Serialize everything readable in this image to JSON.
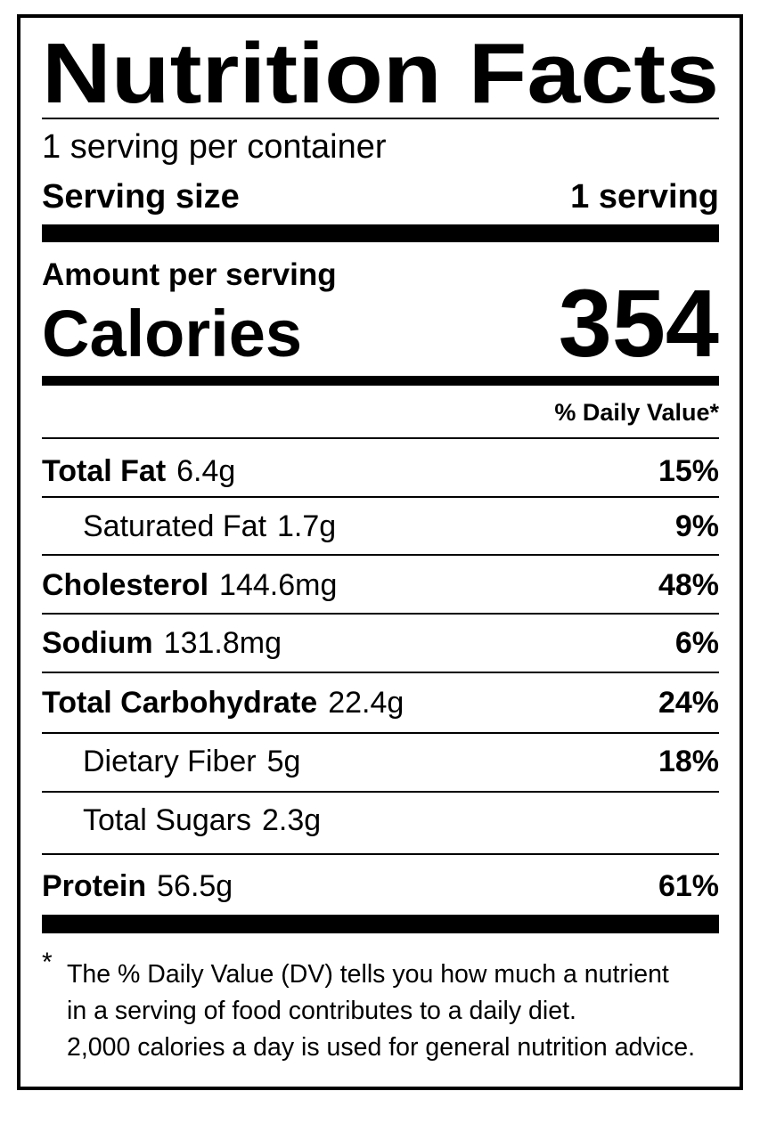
{
  "header": {
    "title": "Nutrition Facts",
    "servings_per_container": "1 serving per container",
    "serving_size_label": "Serving size",
    "serving_size_value": "1 serving"
  },
  "calories": {
    "amount_label": "Amount per serving",
    "label": "Calories",
    "value": "354"
  },
  "daily_value_header": "% Daily Value*",
  "rows": [
    {
      "name": "Total Fat",
      "amount": "6.4g",
      "dv": "15%",
      "indent": false
    },
    {
      "name": "Saturated Fat",
      "amount": "1.7g",
      "dv": "9%",
      "indent": true
    },
    {
      "name": "Cholesterol",
      "amount": "144.6mg",
      "dv": "48%",
      "indent": false
    },
    {
      "name": "Sodium",
      "amount": "131.8mg",
      "dv": "6%",
      "indent": false
    },
    {
      "name": "Total Carbohydrate",
      "amount": "22.4g",
      "dv": "24%",
      "indent": false
    },
    {
      "name": "Dietary Fiber",
      "amount": "5g",
      "dv": "18%",
      "indent": true
    },
    {
      "name": "Total Sugars",
      "amount": "2.3g",
      "indent": true
    },
    {
      "name": "Protein",
      "amount": "56.5g",
      "dv": "61%",
      "indent": false
    }
  ],
  "footnote": {
    "marker": "*",
    "lines": [
      "The % Daily Value (DV) tells you how much a nutrient",
      "in a serving of food contributes to a daily diet.",
      "2,000 calories a day is used for general nutrition advice."
    ]
  }
}
